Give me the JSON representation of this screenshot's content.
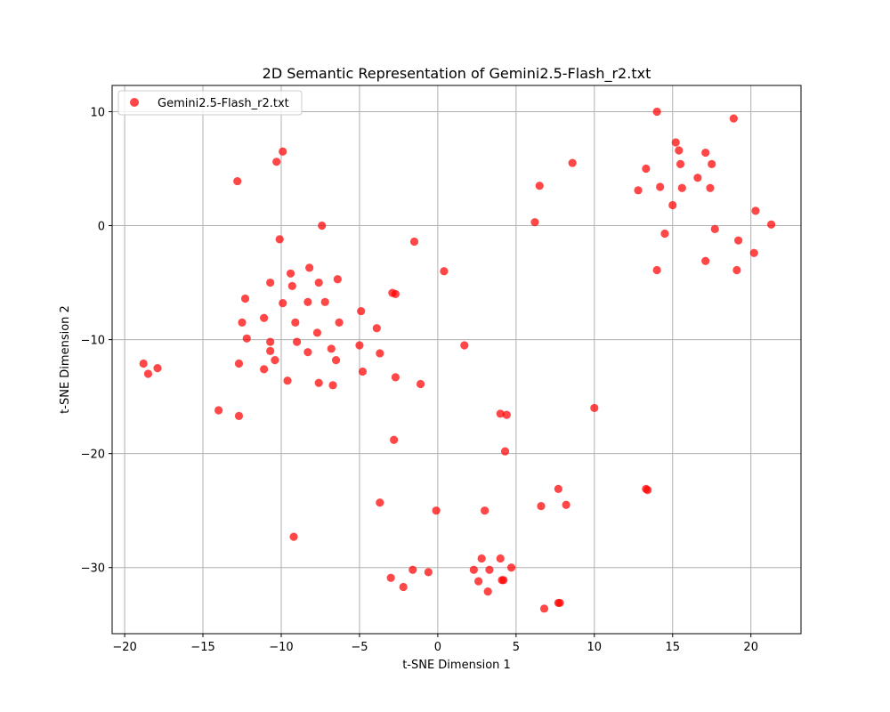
{
  "chart_data": {
    "type": "scatter",
    "title": "2D Semantic Representation of Gemini2.5-Flash_r2.txt",
    "xlabel": "t-SNE Dimension 1",
    "ylabel": "t-SNE Dimension 2",
    "xlim": [
      -20.8,
      23.2
    ],
    "ylim": [
      -35.8,
      12.3
    ],
    "xticks": [
      -20,
      -15,
      -10,
      -5,
      0,
      5,
      10,
      15,
      20
    ],
    "yticks": [
      -30,
      -20,
      -10,
      0,
      10
    ],
    "grid": true,
    "legend_position": "top-left",
    "series": [
      {
        "name": "Gemini2.5-Flash_r2.txt",
        "color": "#ff0000",
        "points": [
          [
            -12.8,
            3.9
          ],
          [
            -10.3,
            5.6
          ],
          [
            -9.9,
            6.5
          ],
          [
            -7.4,
            0.0
          ],
          [
            -10.1,
            -1.2
          ],
          [
            -12.3,
            -6.4
          ],
          [
            -10.7,
            -5.0
          ],
          [
            -9.4,
            -4.2
          ],
          [
            -9.3,
            -5.3
          ],
          [
            -8.2,
            -3.7
          ],
          [
            -7.6,
            -5.0
          ],
          [
            -6.4,
            -4.7
          ],
          [
            -9.9,
            -6.8
          ],
          [
            -8.3,
            -6.7
          ],
          [
            -7.2,
            -6.7
          ],
          [
            -12.5,
            -8.5
          ],
          [
            -11.1,
            -8.1
          ],
          [
            -12.2,
            -9.9
          ],
          [
            -10.7,
            -10.2
          ],
          [
            -10.7,
            -11.0
          ],
          [
            -9.1,
            -8.5
          ],
          [
            -9.0,
            -10.2
          ],
          [
            -7.7,
            -9.4
          ],
          [
            -6.3,
            -8.5
          ],
          [
            -4.9,
            -7.5
          ],
          [
            -3.9,
            -9.0
          ],
          [
            -8.3,
            -11.1
          ],
          [
            -6.8,
            -10.8
          ],
          [
            -6.5,
            -11.8
          ],
          [
            -5.0,
            -10.5
          ],
          [
            -3.7,
            -11.2
          ],
          [
            -10.4,
            -11.8
          ],
          [
            -11.1,
            -12.6
          ],
          [
            -12.7,
            -12.1
          ],
          [
            -4.8,
            -12.8
          ],
          [
            -2.7,
            -13.3
          ],
          [
            -9.6,
            -13.6
          ],
          [
            -7.6,
            -13.8
          ],
          [
            -6.7,
            -14.0
          ],
          [
            -1.1,
            -13.9
          ],
          [
            -2.9,
            -5.9
          ],
          [
            -2.7,
            -6.0
          ],
          [
            -1.5,
            -1.4
          ],
          [
            0.4,
            -4.0
          ],
          [
            1.7,
            -10.5
          ],
          [
            -18.8,
            -12.1
          ],
          [
            -18.5,
            -13.0
          ],
          [
            -17.9,
            -12.5
          ],
          [
            -14.0,
            -16.2
          ],
          [
            -12.7,
            -16.7
          ],
          [
            -2.8,
            -18.8
          ],
          [
            -3.7,
            -24.3
          ],
          [
            -9.2,
            -27.3
          ],
          [
            -0.1,
            -25.0
          ],
          [
            3.0,
            -25.0
          ],
          [
            4.0,
            -16.5
          ],
          [
            4.4,
            -16.6
          ],
          [
            4.3,
            -19.8
          ],
          [
            6.6,
            -24.6
          ],
          [
            7.7,
            -23.1
          ],
          [
            8.2,
            -24.5
          ],
          [
            10.0,
            -16.0
          ],
          [
            13.3,
            -23.1
          ],
          [
            13.4,
            -23.2
          ],
          [
            -1.6,
            -30.2
          ],
          [
            -3.0,
            -30.9
          ],
          [
            -2.2,
            -31.7
          ],
          [
            -0.6,
            -30.4
          ],
          [
            2.3,
            -30.2
          ],
          [
            2.6,
            -31.2
          ],
          [
            2.8,
            -29.2
          ],
          [
            3.3,
            -30.2
          ],
          [
            4.0,
            -29.2
          ],
          [
            4.7,
            -30.0
          ],
          [
            4.1,
            -31.1
          ],
          [
            4.2,
            -31.1
          ],
          [
            3.2,
            -32.1
          ],
          [
            6.8,
            -33.6
          ],
          [
            7.7,
            -33.1
          ],
          [
            7.8,
            -33.1
          ],
          [
            6.2,
            0.3
          ],
          [
            6.5,
            3.5
          ],
          [
            8.6,
            5.5
          ],
          [
            14.0,
            10.0
          ],
          [
            18.9,
            9.4
          ],
          [
            15.2,
            7.3
          ],
          [
            15.4,
            6.6
          ],
          [
            17.1,
            6.4
          ],
          [
            13.3,
            5.0
          ],
          [
            15.5,
            5.4
          ],
          [
            17.5,
            5.4
          ],
          [
            16.6,
            4.2
          ],
          [
            12.8,
            3.1
          ],
          [
            14.2,
            3.4
          ],
          [
            15.6,
            3.3
          ],
          [
            17.4,
            3.3
          ],
          [
            15.0,
            1.8
          ],
          [
            20.3,
            1.3
          ],
          [
            21.3,
            0.1
          ],
          [
            17.7,
            -0.3
          ],
          [
            14.5,
            -0.7
          ],
          [
            19.2,
            -1.3
          ],
          [
            20.2,
            -2.4
          ],
          [
            17.1,
            -3.1
          ],
          [
            14.0,
            -3.9
          ],
          [
            19.1,
            -3.9
          ]
        ]
      }
    ]
  }
}
